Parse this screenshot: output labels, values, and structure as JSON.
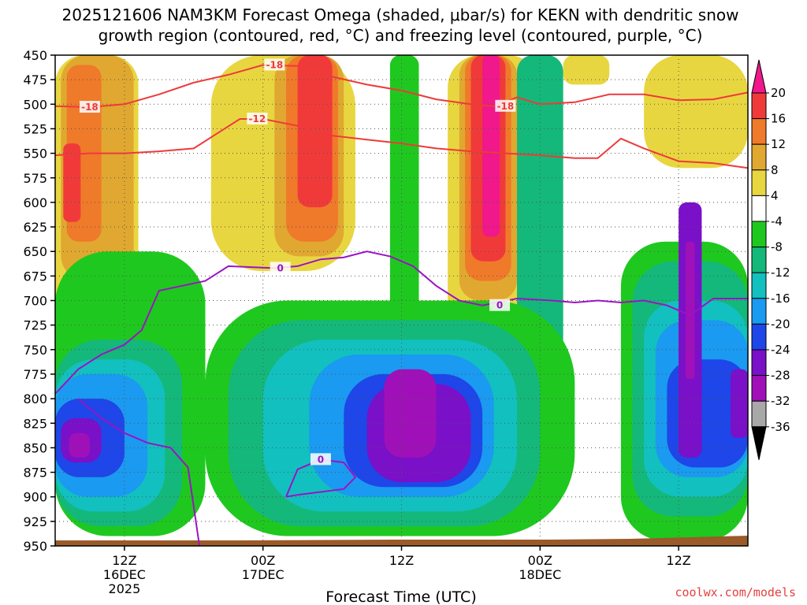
{
  "title": {
    "line1": "2025121606 NAM3KM Forecast Omega (shaded, μbar/s) for KEKN with dendritic snow",
    "line2": "growth region (contoured, red, °C) and freezing level (contoured, purple, °C)"
  },
  "credit": "coolwx.com/models",
  "chart_data": {
    "type": "heatmap",
    "xlabel": "Forecast Time (UTC)",
    "ylabel": "",
    "x_tick_labels": [
      {
        "hour": 6,
        "lines": [
          "12Z",
          "16DEC",
          "2025"
        ]
      },
      {
        "hour": 18,
        "lines": [
          "00Z",
          "17DEC"
        ]
      },
      {
        "hour": 30,
        "lines": [
          "12Z"
        ]
      },
      {
        "hour": 42,
        "lines": [
          "00Z",
          "18DEC"
        ]
      },
      {
        "hour": 54,
        "lines": [
          "12Z"
        ]
      }
    ],
    "xlim": [
      0,
      60
    ],
    "y_tick_labels": [
      "450",
      "475",
      "500",
      "525",
      "550",
      "575",
      "600",
      "625",
      "650",
      "675",
      "700",
      "725",
      "750",
      "775",
      "800",
      "825",
      "850",
      "875",
      "900",
      "925",
      "950"
    ],
    "ylim": [
      950,
      450
    ],
    "colorbar": {
      "labels": [
        "20",
        "16",
        "12",
        "8",
        "4",
        "-4",
        "-8",
        "-12",
        "-16",
        "-20",
        "-24",
        "-28",
        "-32",
        "-36"
      ],
      "levels": [
        20,
        16,
        12,
        8,
        4,
        -4,
        -8,
        -12,
        -16,
        -20,
        -24,
        -28,
        -32,
        -36
      ],
      "colors": [
        "#f0188a",
        "#f03a3a",
        "#ef7a2a",
        "#e0a830",
        "#e8d640",
        "#ffffff",
        "#1fc81f",
        "#14b87a",
        "#12c0c0",
        "#1a9af0",
        "#1e46e8",
        "#7a10c8",
        "#a010b8",
        "#a8a8a8",
        "#000000"
      ]
    },
    "omega_regions": [
      {
        "level": 4,
        "x0": 0.0,
        "x1": 7.2,
        "p_top": 450,
        "p_bot": 735
      },
      {
        "level": 8,
        "x0": 0.5,
        "x1": 6.8,
        "p_top": 450,
        "p_bot": 680
      },
      {
        "level": 12,
        "x0": 1.0,
        "x1": 4.0,
        "p_top": 460,
        "p_bot": 640
      },
      {
        "level": 16,
        "x0": 0.7,
        "x1": 2.2,
        "p_top": 540,
        "p_bot": 620
      },
      {
        "level": 4,
        "x0": 13.5,
        "x1": 26.0,
        "p_top": 450,
        "p_bot": 670
      },
      {
        "level": 8,
        "x0": 19.0,
        "x1": 25.0,
        "p_top": 450,
        "p_bot": 655
      },
      {
        "level": 12,
        "x0": 20.0,
        "x1": 24.5,
        "p_top": 450,
        "p_bot": 640
      },
      {
        "level": 16,
        "x0": 21.0,
        "x1": 24.0,
        "p_top": 450,
        "p_bot": 605
      },
      {
        "level": 4,
        "x0": 34.0,
        "x1": 42.0,
        "p_top": 450,
        "p_bot": 760
      },
      {
        "level": 8,
        "x0": 35.0,
        "x1": 40.0,
        "p_top": 450,
        "p_bot": 700
      },
      {
        "level": 12,
        "x0": 35.5,
        "x1": 39.5,
        "p_top": 450,
        "p_bot": 680
      },
      {
        "level": 16,
        "x0": 36.0,
        "x1": 39.0,
        "p_top": 450,
        "p_bot": 660
      },
      {
        "level": 20,
        "x0": 37.0,
        "x1": 38.5,
        "p_top": 450,
        "p_bot": 635
      },
      {
        "level": 4,
        "x0": 44.0,
        "x1": 48.0,
        "p_top": 450,
        "p_bot": 480
      },
      {
        "level": 4,
        "x0": 51.0,
        "x1": 60.0,
        "p_top": 450,
        "p_bot": 565
      },
      {
        "level": -4,
        "x0": 29.0,
        "x1": 31.5,
        "p_top": 450,
        "p_bot": 930
      },
      {
        "level": -8,
        "x0": 40.0,
        "x1": 44.0,
        "p_top": 450,
        "p_bot": 770
      },
      {
        "level": -4,
        "x0": 0.0,
        "x1": 13.0,
        "p_top": 650,
        "p_bot": 940
      },
      {
        "level": -8,
        "x0": 0.0,
        "x1": 11.0,
        "p_top": 740,
        "p_bot": 930
      },
      {
        "level": -12,
        "x0": 0.0,
        "x1": 9.5,
        "p_top": 760,
        "p_bot": 915
      },
      {
        "level": -16,
        "x0": 0.0,
        "x1": 8.0,
        "p_top": 775,
        "p_bot": 900
      },
      {
        "level": -20,
        "x0": 0.0,
        "x1": 6.0,
        "p_top": 800,
        "p_bot": 880
      },
      {
        "level": -24,
        "x0": 0.5,
        "x1": 4.0,
        "p_top": 820,
        "p_bot": 865
      },
      {
        "level": -28,
        "x0": 1.2,
        "x1": 3.0,
        "p_top": 835,
        "p_bot": 860
      },
      {
        "level": -4,
        "x0": 13.0,
        "x1": 45.0,
        "p_top": 700,
        "p_bot": 940
      },
      {
        "level": -8,
        "x0": 15.0,
        "x1": 42.0,
        "p_top": 720,
        "p_bot": 930
      },
      {
        "level": -12,
        "x0": 18.0,
        "x1": 40.0,
        "p_top": 740,
        "p_bot": 915
      },
      {
        "level": -16,
        "x0": 22.0,
        "x1": 38.0,
        "p_top": 755,
        "p_bot": 900
      },
      {
        "level": -20,
        "x0": 25.0,
        "x1": 37.0,
        "p_top": 775,
        "p_bot": 890
      },
      {
        "level": -24,
        "x0": 27.0,
        "x1": 36.0,
        "p_top": 785,
        "p_bot": 885
      },
      {
        "level": -28,
        "x0": 28.5,
        "x1": 33.0,
        "p_top": 770,
        "p_bot": 860
      },
      {
        "level": -4,
        "x0": 49.0,
        "x1": 60.0,
        "p_top": 640,
        "p_bot": 945
      },
      {
        "level": -8,
        "x0": 50.0,
        "x1": 60.0,
        "p_top": 660,
        "p_bot": 920
      },
      {
        "level": -12,
        "x0": 51.0,
        "x1": 60.0,
        "p_top": 700,
        "p_bot": 900
      },
      {
        "level": -16,
        "x0": 52.0,
        "x1": 60.0,
        "p_top": 720,
        "p_bot": 880
      },
      {
        "level": -20,
        "x0": 53.0,
        "x1": 60.0,
        "p_top": 760,
        "p_bot": 870
      },
      {
        "level": -24,
        "x0": 54.0,
        "x1": 56.0,
        "p_top": 600,
        "p_bot": 860
      },
      {
        "level": -28,
        "x0": 54.6,
        "x1": 55.4,
        "p_top": 640,
        "p_bot": 780
      },
      {
        "level": -24,
        "x0": 58.5,
        "x1": 60.0,
        "p_top": 770,
        "p_bot": 840
      }
    ],
    "series": [
      {
        "name": "-18",
        "color": "#ee3a3a",
        "x": [
          0,
          3,
          6,
          9,
          12,
          15,
          18,
          21,
          24,
          27,
          30,
          33,
          36,
          38,
          40,
          42,
          45,
          48,
          51,
          54,
          57,
          60
        ],
        "y": [
          502,
          503,
          500,
          490,
          478,
          470,
          460,
          461,
          472,
          480,
          486,
          495,
          500,
          502,
          493,
          500,
          498,
          490,
          490,
          496,
          495,
          488
        ],
        "labels": [
          {
            "text": "-18",
            "x": 3.0
          },
          {
            "text": "-18",
            "x": 19.0
          },
          {
            "text": "-18",
            "x": 39.0
          }
        ]
      },
      {
        "name": "-12",
        "color": "#ee3a3a",
        "x": [
          0,
          3,
          6,
          9,
          12,
          14,
          16,
          18,
          21,
          24,
          27,
          30,
          33,
          36,
          39,
          42,
          45,
          47,
          49,
          51,
          54,
          57,
          60
        ],
        "y": [
          552,
          550,
          550,
          548,
          545,
          530,
          515,
          515,
          522,
          532,
          536,
          540,
          545,
          548,
          550,
          552,
          555,
          555,
          535,
          545,
          558,
          560,
          565
        ],
        "labels": [
          {
            "text": "-12",
            "x": 17.5
          }
        ]
      },
      {
        "name": "0",
        "color": "#9a14c4",
        "x": [
          0,
          2,
          4,
          6,
          7.5,
          9,
          11,
          13,
          15,
          17,
          19,
          21,
          23,
          25,
          27,
          29,
          31,
          33,
          35,
          37,
          40,
          43,
          45,
          47,
          49,
          51,
          53,
          55,
          57,
          60
        ],
        "y": [
          795,
          770,
          755,
          745,
          730,
          690,
          685,
          680,
          665,
          666,
          667,
          665,
          658,
          656,
          650,
          655,
          665,
          685,
          700,
          705,
          698,
          700,
          702,
          700,
          702,
          700,
          705,
          715,
          698,
          698
        ],
        "labels": [
          {
            "text": "0",
            "x": 19.5
          },
          {
            "text": "0",
            "x": 38.5
          }
        ]
      },
      {
        "name": "0",
        "color": "#9a14c4",
        "x": [
          2,
          4,
          6,
          8,
          10,
          11.5,
          12.5
        ],
        "y": [
          800,
          820,
          835,
          845,
          850,
          870,
          950
        ],
        "labels": []
      },
      {
        "name": "0",
        "color": "#9a14c4",
        "x": [
          20,
          21,
          23,
          25,
          26,
          25,
          23,
          21,
          20
        ],
        "y": [
          900,
          872,
          862,
          865,
          880,
          892,
          895,
          898,
          900
        ],
        "labels": [
          {
            "text": "0",
            "x": 23.0
          }
        ]
      }
    ]
  }
}
